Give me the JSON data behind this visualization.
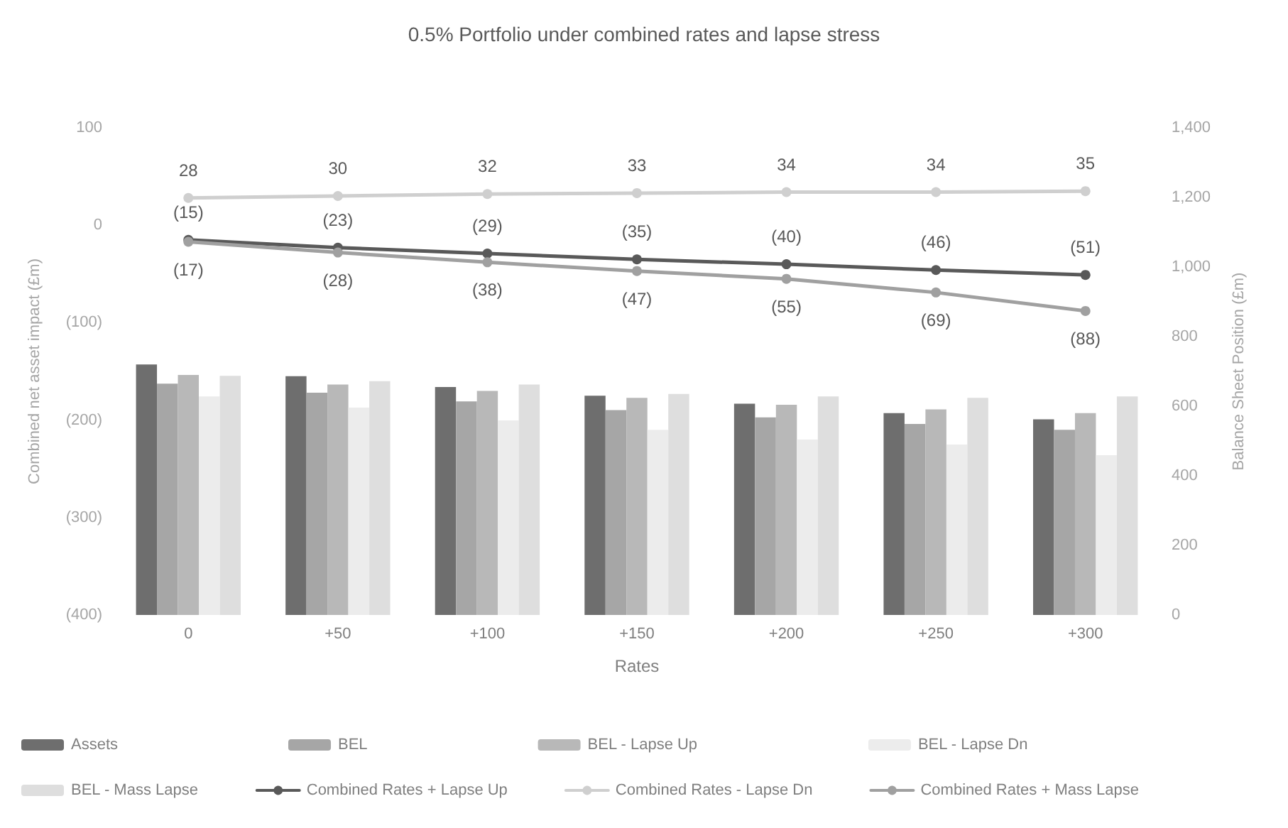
{
  "chart_data": {
    "type": "bar",
    "title": "0.5% Portfolio under combined rates and lapse stress",
    "xlabel": "Rates",
    "ylabel": "Combined net asset impact (£m)",
    "y2label": "Balance Sheet Position (£m)",
    "categories": [
      "0",
      "+50",
      "+100",
      "+150",
      "+200",
      "+250",
      "+300"
    ],
    "series": [
      {
        "name": "Assets",
        "axis": "y2",
        "color": "#6e6e6e",
        "values": [
          720,
          686,
          655,
          630,
          607,
          580,
          562
        ]
      },
      {
        "name": "BEL",
        "axis": "y2",
        "color": "#a6a6a6",
        "values": [
          665,
          639,
          614,
          589,
          568,
          549,
          532
        ]
      },
      {
        "name": "BEL - Lapse Up",
        "axis": "y2",
        "color": "#b8b8b8",
        "values": [
          690,
          662,
          644,
          624,
          604,
          591,
          580
        ]
      },
      {
        "name": "BEL - Lapse Dn",
        "axis": "y2",
        "color": "#ececec",
        "values": [
          628,
          596,
          559,
          532,
          504,
          490,
          459
        ]
      },
      {
        "name": "BEL - Mass Lapse",
        "axis": "y2",
        "color": "#dedede",
        "values": [
          687,
          672,
          662,
          635,
          628,
          624,
          628
        ]
      },
      {
        "name": "Combined Rates + Lapse Up",
        "type": "line",
        "color": "#595959",
        "values": [
          -15,
          -23,
          -29,
          -35,
          -40,
          -46,
          -51
        ],
        "value_labels": [
          "(15)",
          "(23)",
          "(29)",
          "(35)",
          "(40)",
          "(46)",
          "(51)"
        ]
      },
      {
        "name": "Combined Rates - Lapse Dn",
        "type": "line",
        "color": "#cfcfcf",
        "values": [
          28,
          30,
          32,
          33,
          34,
          34,
          35
        ],
        "value_labels": [
          "28",
          "30",
          "32",
          "33",
          "34",
          "34",
          "35"
        ]
      },
      {
        "name": "Combined Rates + Mass Lapse",
        "type": "line",
        "color": "#a0a0a0",
        "values": [
          -17,
          -28,
          -38,
          -47,
          -55,
          -69,
          -88
        ],
        "value_labels": [
          "(17)",
          "(28)",
          "(38)",
          "(47)",
          "(55)",
          "(69)",
          "(88)"
        ]
      }
    ],
    "ylim": [
      -400,
      100
    ],
    "yticks": [
      {
        "value": -400,
        "label": "(400)"
      },
      {
        "value": -300,
        "label": "(300)"
      },
      {
        "value": -200,
        "label": "(200)"
      },
      {
        "value": -100,
        "label": "(100)"
      },
      0,
      100
    ],
    "y2lim": [
      0,
      1400
    ],
    "y2ticks": [
      0,
      200,
      400,
      600,
      800,
      {
        "value": 1000,
        "label": "1,000"
      },
      {
        "value": 1200,
        "label": "1,200"
      },
      {
        "value": 1400,
        "label": "1,400"
      }
    ],
    "grid": false,
    "legend": "bottom",
    "marker": "circle",
    "line_style": "solid"
  }
}
